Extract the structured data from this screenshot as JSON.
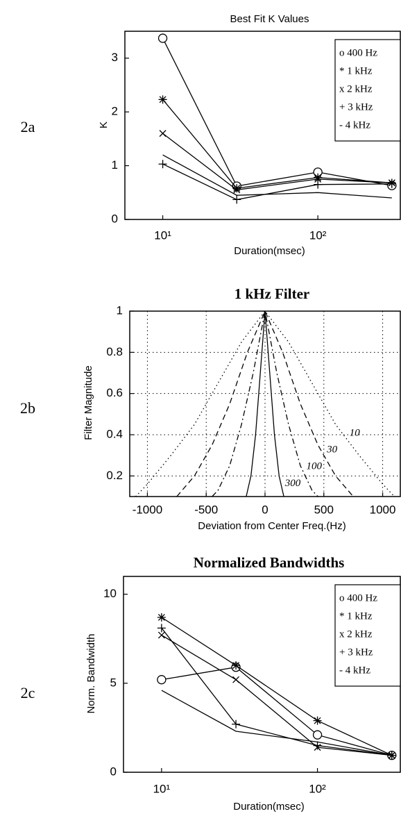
{
  "chart_data": [
    {
      "type": "line",
      "panel_label": "2a",
      "title": "Best Fit K Values",
      "xlabel": "Duration(msec)",
      "ylabel": "K",
      "x": [
        10,
        30,
        100,
        300
      ],
      "xscale": "log",
      "xlim": [
        5.7,
        340
      ],
      "xticks": [
        {
          "value": 10,
          "label": "10¹"
        },
        {
          "value": 100,
          "label": "10²"
        }
      ],
      "ylim": [
        0,
        3.5
      ],
      "yticks": [
        0,
        1,
        2,
        3
      ],
      "grid": false,
      "legend": "upper right",
      "series": [
        {
          "name": "o 400 Hz",
          "marker": "circle",
          "color": "#000000",
          "values": [
            3.37,
            0.62,
            0.88,
            0.63
          ]
        },
        {
          "name": "* 1 kHz",
          "marker": "star",
          "color": "#000000",
          "values": [
            2.23,
            0.58,
            0.78,
            0.68
          ]
        },
        {
          "name": "x 2 kHz",
          "marker": "x",
          "color": "#000000",
          "values": [
            1.6,
            0.55,
            0.75,
            0.68
          ]
        },
        {
          "name": "+ 3 kHz",
          "marker": "plus",
          "color": "#000000",
          "values": [
            1.03,
            0.37,
            0.65,
            0.66
          ]
        },
        {
          "name": "- 4 kHz",
          "marker": "none",
          "color": "#000000",
          "values": [
            1.2,
            0.45,
            0.5,
            0.4
          ]
        }
      ]
    },
    {
      "type": "line",
      "panel_label": "2b",
      "title": "1 kHz Filter",
      "xlabel": "Deviation from Center Freq.(Hz)",
      "ylabel": "Filter Magnitude",
      "xscale": "linear",
      "xlim": [
        -1150,
        1150
      ],
      "xticks": [
        -1000,
        -500,
        0,
        500,
        1000
      ],
      "ylim": [
        0.1,
        1
      ],
      "yticks": [
        0.2,
        0.4,
        0.6,
        0.8,
        1
      ],
      "grid": true,
      "curve_labels": true,
      "series": [
        {
          "name": "10",
          "dash": "dotted",
          "color": "#000000",
          "x": [
            -1100,
            -1000,
            -800,
            -600,
            -400,
            -200,
            0,
            200,
            400,
            600,
            800,
            1000,
            1100
          ],
          "values": [
            0.1,
            0.16,
            0.3,
            0.45,
            0.65,
            0.85,
            1,
            0.85,
            0.65,
            0.45,
            0.3,
            0.16,
            0.1
          ]
        },
        {
          "name": "30",
          "dash": "dashed",
          "color": "#000000",
          "x": [
            -750,
            -600,
            -450,
            -300,
            -150,
            0,
            150,
            300,
            450,
            600,
            750
          ],
          "values": [
            0.1,
            0.2,
            0.35,
            0.55,
            0.8,
            1,
            0.8,
            0.55,
            0.35,
            0.2,
            0.1
          ]
        },
        {
          "name": "100",
          "dash": "dashdot",
          "color": "#000000",
          "x": [
            -450,
            -400,
            -300,
            -200,
            -100,
            0,
            100,
            200,
            300,
            400,
            450
          ],
          "values": [
            0.1,
            0.13,
            0.25,
            0.45,
            0.7,
            1,
            0.7,
            0.45,
            0.25,
            0.13,
            0.1
          ]
        },
        {
          "name": "300",
          "dash": "solid",
          "color": "#000000",
          "x": [
            -160,
            -120,
            -80,
            -40,
            0,
            40,
            80,
            120,
            160
          ],
          "values": [
            0.1,
            0.2,
            0.4,
            0.7,
            1,
            0.7,
            0.4,
            0.2,
            0.1
          ]
        }
      ]
    },
    {
      "type": "line",
      "panel_label": "2c",
      "title": "Normalized Bandwidths",
      "xlabel": "Duration(msec)",
      "ylabel": "Norm. Bandwidth",
      "x": [
        10,
        30,
        100,
        300
      ],
      "xscale": "log",
      "xlim": [
        5.7,
        340
      ],
      "xticks": [
        {
          "value": 10,
          "label": "10¹"
        },
        {
          "value": 100,
          "label": "10²"
        }
      ],
      "ylim": [
        0,
        11
      ],
      "yticks": [
        0,
        5,
        10
      ],
      "grid": false,
      "legend": "upper right",
      "series": [
        {
          "name": "o 400 Hz",
          "marker": "circle",
          "color": "#000000",
          "values": [
            5.2,
            5.9,
            2.1,
            0.95
          ]
        },
        {
          "name": "* 1 kHz",
          "marker": "star",
          "color": "#000000",
          "values": [
            8.7,
            6.0,
            2.9,
            0.95
          ]
        },
        {
          "name": "x 2 kHz",
          "marker": "x",
          "color": "#000000",
          "values": [
            7.7,
            5.2,
            1.4,
            0.95
          ]
        },
        {
          "name": "+ 3 kHz",
          "marker": "plus",
          "color": "#000000",
          "values": [
            8.1,
            2.7,
            1.5,
            0.95
          ]
        },
        {
          "name": "- 4 kHz",
          "marker": "none",
          "color": "#000000",
          "values": [
            4.6,
            2.3,
            1.7,
            0.95
          ]
        }
      ]
    }
  ]
}
